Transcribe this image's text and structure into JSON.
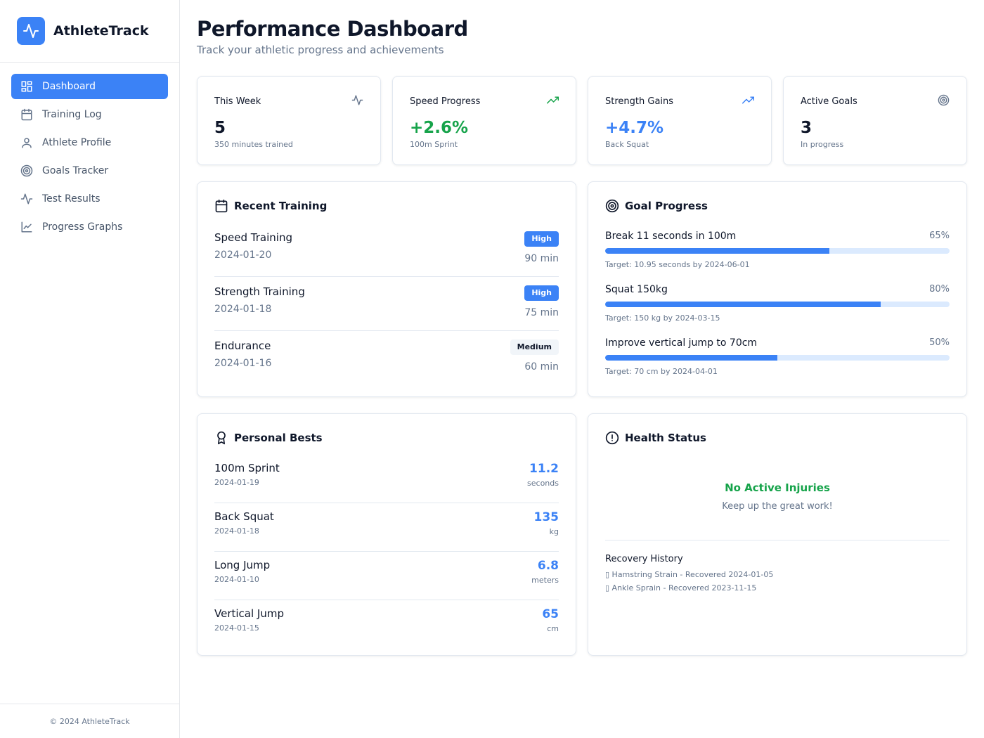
{
  "brand": {
    "name": "AthleteTrack",
    "accent": "#3b82f6"
  },
  "sidebar": {
    "items": [
      {
        "label": "Dashboard",
        "icon": "dashboard-grid-icon",
        "active": true
      },
      {
        "label": "Training Log",
        "icon": "calendar-icon"
      },
      {
        "label": "Athlete Profile",
        "icon": "user-icon"
      },
      {
        "label": "Goals Tracker",
        "icon": "target-icon"
      },
      {
        "label": "Test Results",
        "icon": "activity-icon"
      },
      {
        "label": "Progress Graphs",
        "icon": "line-chart-icon"
      }
    ],
    "footer": "© 2024 AthleteTrack"
  },
  "header": {
    "title": "Performance Dashboard",
    "subtitle": "Track your athletic progress and achievements"
  },
  "stats": [
    {
      "label": "This Week",
      "value": "5",
      "sub": "350 minutes trained",
      "icon": "activity-icon"
    },
    {
      "label": "Speed Progress",
      "value": "+2.6%",
      "sub": "100m Sprint",
      "icon": "trending-up-icon",
      "color": "#16a34a"
    },
    {
      "label": "Strength Gains",
      "value": "+4.7%",
      "sub": "Back Squat",
      "icon": "trending-up-icon",
      "color": "#3b82f6"
    },
    {
      "label": "Active Goals",
      "value": "3",
      "sub": "In progress",
      "icon": "target-icon"
    }
  ],
  "recent_training": {
    "title": "Recent Training",
    "items": [
      {
        "name": "Speed Training",
        "date": "2024-01-20",
        "intensity": "High",
        "duration": "90 min"
      },
      {
        "name": "Strength Training",
        "date": "2024-01-18",
        "intensity": "High",
        "duration": "75 min"
      },
      {
        "name": "Endurance",
        "date": "2024-01-16",
        "intensity": "Medium",
        "duration": "60 min"
      }
    ]
  },
  "goal_progress": {
    "title": "Goal Progress",
    "goals": [
      {
        "name": "Break 11 seconds in 100m",
        "percent_label": "65%",
        "progress": 0.65,
        "target": "Target: 10.95 seconds by 2024-06-01"
      },
      {
        "name": "Squat 150kg",
        "percent_label": "80%",
        "progress": 0.8,
        "target": "Target: 150 kg by 2024-03-15"
      },
      {
        "name": "Improve vertical jump to 70cm",
        "percent_label": "50%",
        "progress": 0.5,
        "target": "Target: 70 cm by 2024-04-01"
      }
    ]
  },
  "personal_bests": {
    "title": "Personal Bests",
    "items": [
      {
        "name": "100m Sprint",
        "date": "2024-01-19",
        "value": "11.2",
        "unit": "seconds"
      },
      {
        "name": "Back Squat",
        "date": "2024-01-18",
        "value": "135",
        "unit": "kg"
      },
      {
        "name": "Long Jump",
        "date": "2024-01-10",
        "value": "6.8",
        "unit": "meters"
      },
      {
        "name": "Vertical Jump",
        "date": "2024-01-15",
        "value": "65",
        "unit": "cm"
      }
    ]
  },
  "health": {
    "title": "Health Status",
    "status": "No Active Injuries",
    "message": "Keep up the great work!",
    "recovery_title": "Recovery History",
    "recovery": [
      "▯ Hamstring Strain - Recovered 2024-01-05",
      "▯ Ankle Sprain - Recovered 2023-11-15"
    ]
  }
}
